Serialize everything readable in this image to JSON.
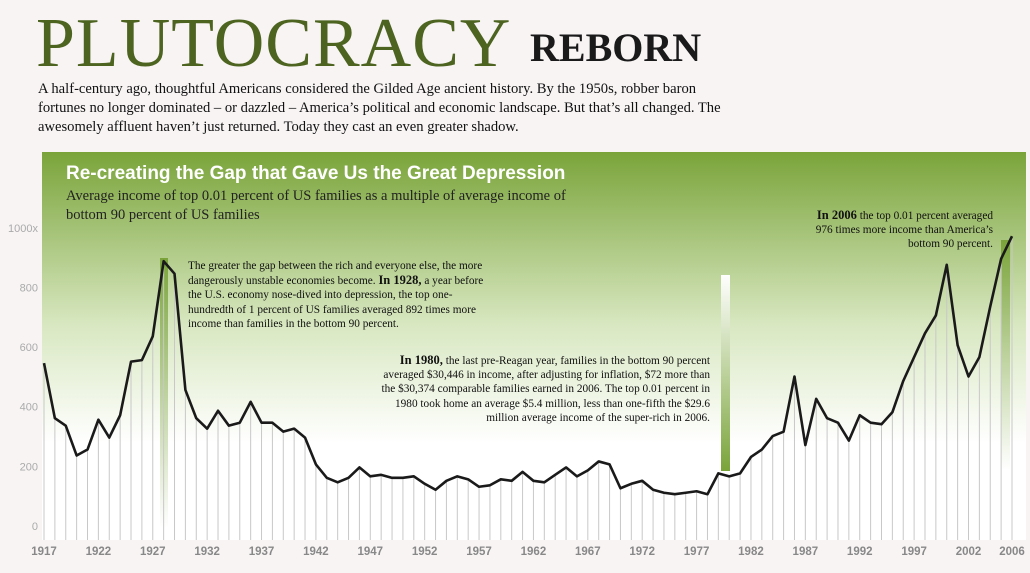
{
  "header": {
    "title": "PLUTOCRACY",
    "title_suffix": "REBORN",
    "intro": "A half-century ago, thoughtful Americans considered the Gilded Age ancient history. By the 1950s, robber baron fortunes no longer dominated – or dazzled – America’s political and economic landscape. But that’s all changed. The awesomely affluent haven’t just returned. Today they cast an even greater shadow."
  },
  "chart_data": {
    "type": "line",
    "title": "Re-creating the Gap that Gave Us the Great Depression",
    "subtitle": "Average income of top 0.01 percent of US families as a multiple of average income of bottom 90 percent of US families",
    "x": [
      1917,
      1918,
      1919,
      1920,
      1921,
      1922,
      1923,
      1924,
      1925,
      1926,
      1927,
      1928,
      1929,
      1930,
      1931,
      1932,
      1933,
      1934,
      1935,
      1936,
      1937,
      1938,
      1939,
      1940,
      1941,
      1942,
      1943,
      1944,
      1945,
      1946,
      1947,
      1948,
      1949,
      1950,
      1951,
      1952,
      1953,
      1954,
      1955,
      1956,
      1957,
      1958,
      1959,
      1960,
      1961,
      1962,
      1963,
      1964,
      1965,
      1966,
      1967,
      1968,
      1969,
      1970,
      1971,
      1972,
      1973,
      1974,
      1975,
      1976,
      1977,
      1978,
      1979,
      1980,
      1981,
      1982,
      1983,
      1984,
      1985,
      1986,
      1987,
      1988,
      1989,
      1990,
      1991,
      1992,
      1993,
      1994,
      1995,
      1996,
      1997,
      1998,
      1999,
      2000,
      2001,
      2002,
      2003,
      2004,
      2005,
      2006
    ],
    "series": [
      {
        "name": "Top 0.01 percent multiple",
        "color": "#1a1a1a",
        "values": [
          550,
          365,
          340,
          240,
          260,
          360,
          300,
          375,
          555,
          560,
          640,
          892,
          850,
          460,
          365,
          330,
          390,
          340,
          350,
          420,
          350,
          350,
          320,
          330,
          300,
          210,
          165,
          150,
          165,
          200,
          170,
          175,
          165,
          165,
          170,
          145,
          125,
          155,
          170,
          160,
          135,
          140,
          160,
          155,
          185,
          155,
          150,
          175,
          200,
          170,
          190,
          220,
          210,
          130,
          145,
          155,
          125,
          115,
          110,
          115,
          120,
          110,
          180,
          170,
          180,
          235,
          260,
          305,
          320,
          505,
          275,
          430,
          365,
          350,
          290,
          375,
          350,
          345,
          385,
          490,
          570,
          650,
          710,
          880,
          610,
          505,
          570,
          740,
          900,
          976
        ]
      }
    ],
    "xlim": [
      1917,
      2006
    ],
    "xticks": [
      1917,
      1922,
      1927,
      1932,
      1937,
      1942,
      1947,
      1952,
      1957,
      1962,
      1967,
      1972,
      1977,
      1982,
      1987,
      1992,
      1997,
      2002,
      2006
    ],
    "ylim": [
      0,
      1000
    ],
    "yticks": [
      0,
      200,
      400,
      600,
      800,
      {
        "value": 1000,
        "label": "1000x"
      }
    ],
    "drop_lines": true,
    "annotations": [
      {
        "before": "The greater the gap between the rich and everyone else, the more dangerously unstable economies become.",
        "lead": "In 1928,",
        "after": "a year before the U.S. economy nose-dived into depression, the top one-hundredth of 1 percent of US families averaged 892 times more income than families in the bottom 90 percent."
      },
      {
        "before": "",
        "lead": "In 1980,",
        "after": "the last pre-Reagan year, families in the bottom 90 percent averaged $30,446 in income, after adjusting for inflation, $72 more than the $30,374 comparable families earned in 2006. The top 0.01 percent in 1980 took home an average $5.4 million, less than one-fifth the $29.6 million average income of the super-rich in 2006."
      },
      {
        "before": "",
        "lead": "In 2006",
        "after": "the top 0.01 percent averaged 976 times more income than America’s bottom 90 percent."
      }
    ]
  }
}
